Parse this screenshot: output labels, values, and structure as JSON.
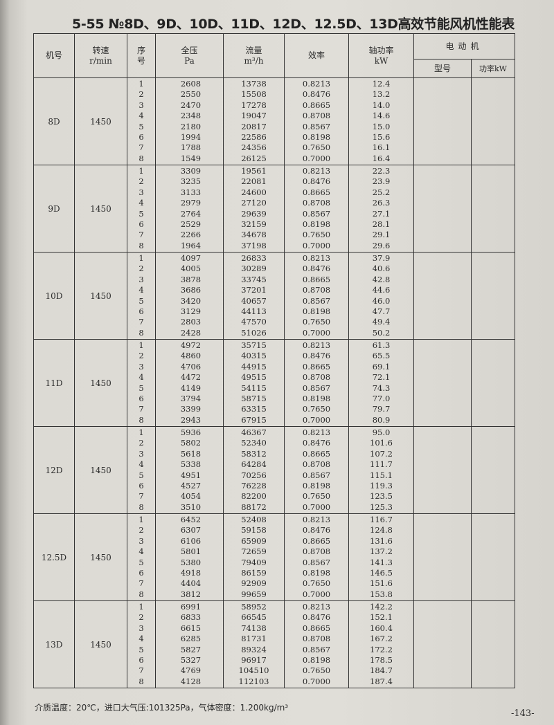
{
  "title": "5-55 №8D、9D、10D、11D、12D、12.5D、13D高效节能风机性能表",
  "headers": {
    "model": "机号",
    "speed": "转速",
    "speed_unit": "r/min",
    "seq": "序号",
    "pressure": "全压",
    "pressure_unit": "Pa",
    "flow": "流量",
    "flow_unit": "m³/h",
    "efficiency": "效率",
    "shaft_power": "轴功率",
    "shaft_power_unit": "kW",
    "motor": "电动机",
    "motor_type": "型号",
    "motor_power": "功率kW"
  },
  "groups": [
    {
      "model": "8D",
      "speed": "1450",
      "seq": [
        "1",
        "2",
        "3",
        "4",
        "5",
        "6",
        "7",
        "8"
      ],
      "pressure": [
        "2608",
        "2550",
        "2470",
        "2348",
        "2180",
        "1994",
        "1788",
        "1549"
      ],
      "flow": [
        "13738",
        "15508",
        "17278",
        "19047",
        "20817",
        "22586",
        "24356",
        "26125"
      ],
      "efficiency": [
        "0.8213",
        "0.8476",
        "0.8665",
        "0.8708",
        "0.8567",
        "0.8198",
        "0.7650",
        "0.7000"
      ],
      "shaft_power": [
        "12.4",
        "13.2",
        "14.0",
        "14.6",
        "15.0",
        "15.6",
        "16.1",
        "16.4"
      ]
    },
    {
      "model": "9D",
      "speed": "1450",
      "seq": [
        "1",
        "2",
        "3",
        "4",
        "5",
        "6",
        "7",
        "8"
      ],
      "pressure": [
        "3309",
        "3235",
        "3133",
        "2979",
        "2764",
        "2529",
        "2266",
        "1964"
      ],
      "flow": [
        "19561",
        "22081",
        "24600",
        "27120",
        "29639",
        "32159",
        "34678",
        "37198"
      ],
      "efficiency": [
        "0.8213",
        "0.8476",
        "0.8665",
        "0.8708",
        "0.8567",
        "0.8198",
        "0.7650",
        "0.7000"
      ],
      "shaft_power": [
        "22.3",
        "23.9",
        "25.2",
        "26.3",
        "27.1",
        "28.1",
        "29.1",
        "29.6"
      ]
    },
    {
      "model": "10D",
      "speed": "1450",
      "seq": [
        "1",
        "2",
        "3",
        "4",
        "5",
        "6",
        "7",
        "8"
      ],
      "pressure": [
        "4097",
        "4005",
        "3878",
        "3686",
        "3420",
        "3129",
        "2803",
        "2428"
      ],
      "flow": [
        "26833",
        "30289",
        "33745",
        "37201",
        "40657",
        "44113",
        "47570",
        "51026"
      ],
      "efficiency": [
        "0.8213",
        "0.8476",
        "0.8665",
        "0.8708",
        "0.8567",
        "0.8198",
        "0.7650",
        "0.7000"
      ],
      "shaft_power": [
        "37.9",
        "40.6",
        "42.8",
        "44.6",
        "46.0",
        "47.7",
        "49.4",
        "50.2"
      ]
    },
    {
      "model": "11D",
      "speed": "1450",
      "seq": [
        "1",
        "2",
        "3",
        "4",
        "5",
        "6",
        "7",
        "8"
      ],
      "pressure": [
        "4972",
        "4860",
        "4706",
        "4472",
        "4149",
        "3794",
        "3399",
        "2943"
      ],
      "flow": [
        "35715",
        "40315",
        "44915",
        "49515",
        "54115",
        "58715",
        "63315",
        "67915"
      ],
      "efficiency": [
        "0.8213",
        "0.8476",
        "0.8665",
        "0.8708",
        "0.8567",
        "0.8198",
        "0.7650",
        "0.7000"
      ],
      "shaft_power": [
        "61.3",
        "65.5",
        "69.1",
        "72.1",
        "74.3",
        "77.0",
        "79.7",
        "80.9"
      ]
    },
    {
      "model": "12D",
      "speed": "1450",
      "seq": [
        "1",
        "2",
        "3",
        "4",
        "5",
        "6",
        "7",
        "8"
      ],
      "pressure": [
        "5936",
        "5802",
        "5618",
        "5338",
        "4951",
        "4527",
        "4054",
        "3510"
      ],
      "flow": [
        "46367",
        "52340",
        "58312",
        "64284",
        "70256",
        "76228",
        "82200",
        "88172"
      ],
      "efficiency": [
        "0.8213",
        "0.8476",
        "0.8665",
        "0.8708",
        "0.8567",
        "0.8198",
        "0.7650",
        "0.7000"
      ],
      "shaft_power": [
        "95.0",
        "101.6",
        "107.2",
        "111.7",
        "115.1",
        "119.3",
        "123.5",
        "125.3"
      ]
    },
    {
      "model": "12.5D",
      "speed": "1450",
      "seq": [
        "1",
        "2",
        "3",
        "4",
        "5",
        "6",
        "7",
        "8"
      ],
      "pressure": [
        "6452",
        "6307",
        "6106",
        "5801",
        "5380",
        "4918",
        "4404",
        "3812"
      ],
      "flow": [
        "52408",
        "59158",
        "65909",
        "72659",
        "79409",
        "86159",
        "92909",
        "99659"
      ],
      "efficiency": [
        "0.8213",
        "0.8476",
        "0.8665",
        "0.8708",
        "0.8567",
        "0.8198",
        "0.7650",
        "0.7000"
      ],
      "shaft_power": [
        "116.7",
        "124.8",
        "131.6",
        "137.2",
        "141.3",
        "146.5",
        "151.6",
        "153.8"
      ]
    },
    {
      "model": "13D",
      "speed": "1450",
      "seq": [
        "1",
        "2",
        "3",
        "4",
        "5",
        "6",
        "7",
        "8"
      ],
      "pressure": [
        "6991",
        "6833",
        "6615",
        "6285",
        "5827",
        "5327",
        "4769",
        "4128"
      ],
      "flow": [
        "58952",
        "66545",
        "74138",
        "81731",
        "89324",
        "96917",
        "104510",
        "112103"
      ],
      "efficiency": [
        "0.8213",
        "0.8476",
        "0.8665",
        "0.8708",
        "0.8567",
        "0.8198",
        "0.7650",
        "0.7000"
      ],
      "shaft_power": [
        "142.2",
        "152.1",
        "160.4",
        "167.2",
        "172.2",
        "178.5",
        "184.7",
        "187.4"
      ]
    }
  ],
  "footnote": "介质温度：20℃，进口大气压:101325Pa，气体密度：1.200kg/m³",
  "page_number": "-143-"
}
